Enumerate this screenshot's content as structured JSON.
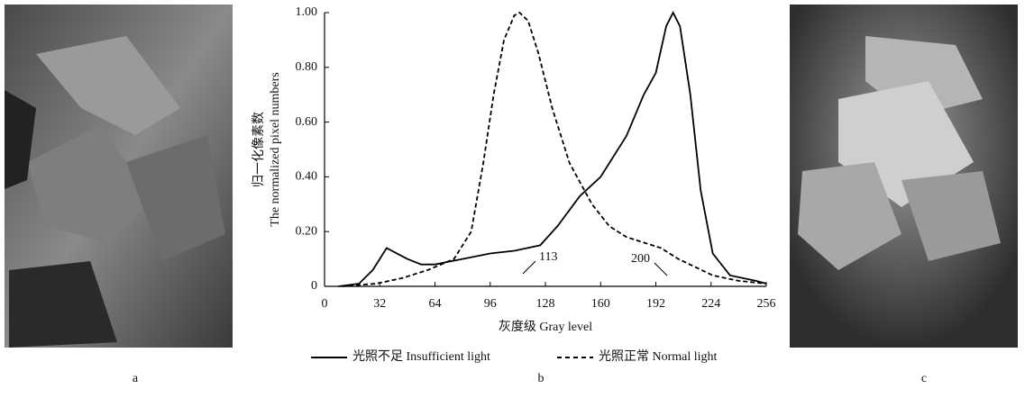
{
  "chart_data": {
    "type": "line",
    "y_label_lines": [
      "归一化像素数",
      "The normalized pixel numbers"
    ],
    "x_label": "灰度级 Gray level",
    "xlim": [
      0,
      256
    ],
    "xticks": [
      0,
      32,
      64,
      96,
      128,
      160,
      192,
      224,
      256
    ],
    "ylim": [
      0,
      1
    ],
    "yticks": [
      0,
      {
        "value": 0.2,
        "label": "0.20"
      },
      {
        "value": 0.4,
        "label": "0.40"
      },
      {
        "value": 0.6,
        "label": "0.60"
      },
      {
        "value": 0.8,
        "label": "0.80"
      },
      {
        "value": 1,
        "label": "1.00"
      }
    ],
    "series": [
      {
        "name": "光照不足 Insufficient light",
        "color": "#000000",
        "dash": false,
        "x": [
          8,
          20,
          28,
          36,
          42,
          48,
          56,
          64,
          72,
          80,
          96,
          110,
          125,
          135,
          148,
          160,
          175,
          185,
          192,
          198,
          202,
          206,
          212,
          218,
          225,
          235,
          250,
          256
        ],
        "values": [
          0,
          0.01,
          0.06,
          0.14,
          0.12,
          0.1,
          0.08,
          0.08,
          0.09,
          0.1,
          0.12,
          0.13,
          0.15,
          0.22,
          0.33,
          0.4,
          0.55,
          0.7,
          0.78,
          0.95,
          1.0,
          0.95,
          0.7,
          0.35,
          0.12,
          0.04,
          0.02,
          0.01
        ]
      },
      {
        "name": "光照正常 Normal light",
        "color": "#000000",
        "dash": true,
        "x": [
          10,
          30,
          45,
          60,
          75,
          85,
          92,
          98,
          104,
          110,
          113,
          118,
          124,
          132,
          142,
          155,
          165,
          175,
          185,
          195,
          205,
          215,
          225,
          240,
          256
        ],
        "values": [
          0,
          0.01,
          0.03,
          0.06,
          0.1,
          0.2,
          0.45,
          0.7,
          0.9,
          0.99,
          1.0,
          0.97,
          0.85,
          0.65,
          0.45,
          0.3,
          0.22,
          0.18,
          0.16,
          0.14,
          0.1,
          0.07,
          0.04,
          0.02,
          0.01
        ]
      }
    ],
    "annotations": [
      "113",
      "200"
    ]
  },
  "panel_labels": [
    "a",
    "b",
    "c"
  ]
}
